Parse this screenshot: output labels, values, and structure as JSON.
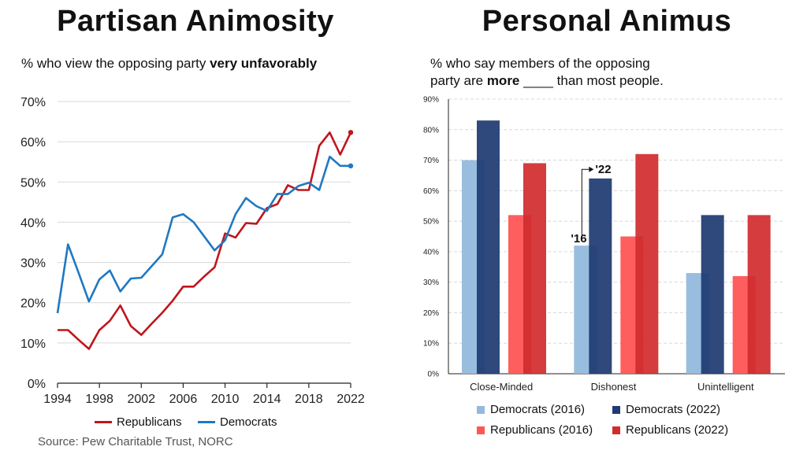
{
  "left": {
    "title": "Partisan Animosity",
    "subtitle_pre": "% who view the opposing party ",
    "subtitle_bold": "very unfavorably",
    "source": "Source: Pew Charitable Trust, NORC"
  },
  "right": {
    "title": "Personal Animus",
    "subtitle_line1": "% who say members of the opposing",
    "subtitle_pre": "party are ",
    "subtitle_bold": "more",
    "subtitle_blank": "____",
    "subtitle_post": " than most people."
  },
  "colors": {
    "republicans": "#c0151b",
    "democrats": "#1f78c1",
    "dem2016": "#94b9dc",
    "dem2022": "#1f3b73",
    "rep2016": "#ff5555",
    "rep2022": "#d12d2f"
  },
  "chart_data": [
    {
      "type": "line",
      "xlim": [
        1994,
        2022
      ],
      "ylim": [
        0,
        70
      ],
      "x_ticks": [
        "1994",
        "1998",
        "2002",
        "2006",
        "2010",
        "2014",
        "2018",
        "2022"
      ],
      "y_ticks": [
        "0%",
        "10%",
        "20%",
        "30%",
        "40%",
        "50%",
        "60%",
        "70%"
      ],
      "grid": "horizontal",
      "legend": "bottom",
      "series": [
        {
          "name": "Republicans",
          "points": [
            [
              1994,
              13.2
            ],
            [
              1995,
              13.2
            ],
            [
              1996,
              10.8
            ],
            [
              1997,
              8.5
            ],
            [
              1998,
              13.2
            ],
            [
              1999,
              15.5
            ],
            [
              2000,
              19.3
            ],
            [
              2001,
              14.2
            ],
            [
              2002,
              12.0
            ],
            [
              2003,
              14.8
            ],
            [
              2004,
              17.5
            ],
            [
              2005,
              20.5
            ],
            [
              2006,
              24.0
            ],
            [
              2007,
              24.0
            ],
            [
              2008,
              26.5
            ],
            [
              2009,
              28.8
            ],
            [
              2010,
              37.2
            ],
            [
              2011,
              36.2
            ],
            [
              2012,
              39.8
            ],
            [
              2013,
              39.6
            ],
            [
              2014,
              43.5
            ],
            [
              2015,
              44.5
            ],
            [
              2016,
              49.2
            ],
            [
              2017,
              48.0
            ],
            [
              2018,
              48.0
            ],
            [
              2019,
              59.0
            ],
            [
              2020,
              62.3
            ],
            [
              2021,
              56.8
            ],
            [
              2022,
              62.3
            ]
          ]
        },
        {
          "name": "Democrats",
          "points": [
            [
              1994,
              17.4
            ],
            [
              1995,
              34.5
            ],
            [
              1996,
              27.5
            ],
            [
              1997,
              20.3
            ],
            [
              1998,
              25.8
            ],
            [
              1999,
              28.0
            ],
            [
              2000,
              22.8
            ],
            [
              2001,
              26.0
            ],
            [
              2002,
              26.2
            ],
            [
              2004,
              32.0
            ],
            [
              2005,
              41.2
            ],
            [
              2006,
              42.0
            ],
            [
              2007,
              40.0
            ],
            [
              2009,
              33.0
            ],
            [
              2010,
              35.5
            ],
            [
              2011,
              42.0
            ],
            [
              2012,
              46.0
            ],
            [
              2013,
              44.0
            ],
            [
              2014,
              42.8
            ],
            [
              2015,
              47.0
            ],
            [
              2016,
              47.0
            ],
            [
              2017,
              49.0
            ],
            [
              2018,
              49.8
            ],
            [
              2019,
              48.0
            ],
            [
              2020,
              56.3
            ],
            [
              2021,
              54.0
            ],
            [
              2022,
              54.0
            ]
          ]
        }
      ]
    },
    {
      "type": "bar",
      "categories": [
        "Close-Minded",
        "Dishonest",
        "Unintelligent"
      ],
      "ylim": [
        0,
        90
      ],
      "y_ticks": [
        "0%",
        "10%",
        "20%",
        "30%",
        "40%",
        "50%",
        "60%",
        "70%",
        "80%",
        "90%"
      ],
      "grid": "horizontal dashed",
      "legend": "bottom",
      "annotations": [
        "'16",
        "'22"
      ],
      "series": [
        {
          "name": "Democrats (2016)",
          "values": [
            70,
            42,
            33
          ]
        },
        {
          "name": "Democrats (2022)",
          "values": [
            83,
            64,
            52
          ]
        },
        {
          "name": "Republicans (2016)",
          "values": [
            52,
            45,
            32
          ]
        },
        {
          "name": "Republicans (2022)",
          "values": [
            69,
            72,
            52
          ]
        }
      ]
    }
  ]
}
